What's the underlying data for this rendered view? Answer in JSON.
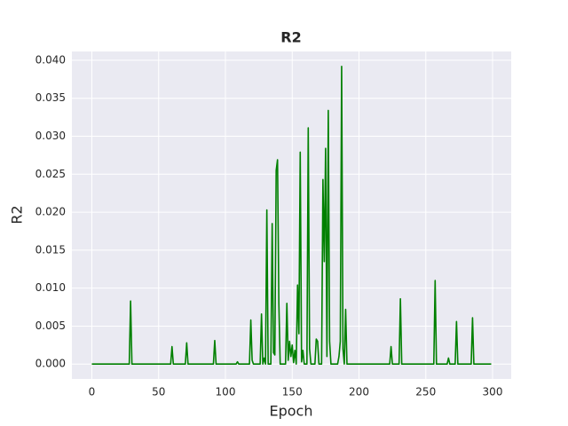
{
  "chart_data": {
    "type": "line",
    "title": "R2",
    "xlabel": "Epoch",
    "ylabel": "R2",
    "color": "#008000",
    "grid": true,
    "x": [
      0,
      28,
      29,
      30,
      59,
      60,
      61,
      70,
      71,
      72,
      91,
      92,
      93,
      108,
      109,
      110,
      118,
      119,
      120,
      121,
      126,
      127,
      128,
      129,
      130,
      131,
      132,
      134,
      135,
      136,
      137,
      138,
      139,
      140,
      141,
      145,
      146,
      147,
      148,
      149,
      150,
      151,
      152,
      153,
      154,
      155,
      156,
      157,
      158,
      159,
      161,
      162,
      163,
      164,
      167,
      168,
      169,
      170,
      172,
      173,
      174,
      175,
      176,
      177,
      178,
      179,
      184,
      185,
      186,
      187,
      188,
      189,
      190,
      191,
      223,
      224,
      225,
      230,
      231,
      232,
      256,
      257,
      258,
      266,
      267,
      268,
      272,
      273,
      274,
      284,
      285,
      286,
      299
    ],
    "values": [
      0,
      0,
      0.0083,
      0,
      0,
      0.0023,
      0,
      0,
      0.0028,
      0,
      0,
      0.0031,
      0,
      0,
      0.0003,
      0,
      0,
      0.0058,
      0.0005,
      0,
      0,
      0.0066,
      0,
      0.0008,
      0,
      0.0203,
      0,
      0,
      0.0185,
      0.0015,
      0.0012,
      0.0255,
      0.0269,
      0.008,
      0,
      0,
      0.008,
      0.0005,
      0.003,
      0.001,
      0.0025,
      0.0002,
      0.0018,
      0,
      0.0104,
      0.004,
      0.0279,
      0.0003,
      0.0018,
      0,
      0,
      0.0311,
      0.002,
      0,
      0,
      0.0033,
      0.003,
      0,
      0,
      0.0243,
      0.0135,
      0.0284,
      0.001,
      0.0334,
      0.003,
      0,
      0,
      0.001,
      0.003,
      0.0392,
      0.002,
      0,
      0.0072,
      0,
      0,
      0.0023,
      0,
      0,
      0.0086,
      0,
      0,
      0.011,
      0,
      0,
      0.0008,
      0,
      0,
      0.0056,
      0,
      0,
      0.0061,
      0,
      0
    ],
    "xlim": [
      -14.95,
      313.95
    ],
    "xticks": [
      0,
      50,
      100,
      150,
      200,
      250,
      300
    ],
    "ylim": [
      -0.00196,
      0.04116
    ],
    "yticks": [
      {
        "value": 0,
        "label": "0.000"
      },
      {
        "value": 0.005,
        "label": "0.005"
      },
      {
        "value": 0.01,
        "label": "0.010"
      },
      {
        "value": 0.015,
        "label": "0.015"
      },
      {
        "value": 0.02,
        "label": "0.020"
      },
      {
        "value": 0.025,
        "label": "0.025"
      },
      {
        "value": 0.03,
        "label": "0.030"
      },
      {
        "value": 0.035,
        "label": "0.035"
      },
      {
        "value": 0.04,
        "label": "0.040"
      }
    ]
  }
}
